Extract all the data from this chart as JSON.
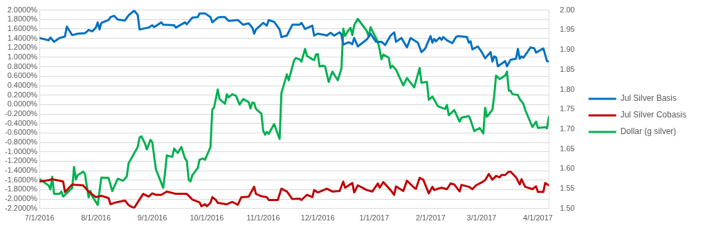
{
  "chart_data": {
    "type": "line",
    "legend": "right",
    "grid": "y",
    "xlim": [
      "2016-07-01",
      "2017-04-07"
    ],
    "xticks": [
      {
        "value": "2016-07-01",
        "label": "7/1/2016"
      },
      {
        "value": "2016-08-01",
        "label": "8/1/2016"
      },
      {
        "value": "2016-09-01",
        "label": "9/1/2016"
      },
      {
        "value": "2016-10-01",
        "label": "10/1/2016"
      },
      {
        "value": "2016-11-01",
        "label": "11/1/2016"
      },
      {
        "value": "2016-12-01",
        "label": "12/1/2016"
      },
      {
        "value": "2017-01-01",
        "label": "1/1/2017"
      },
      {
        "value": "2017-02-01",
        "label": "2/1/2017"
      },
      {
        "value": "2017-03-01",
        "label": "3/1/2017"
      },
      {
        "value": "2017-04-01",
        "label": "4/1/2017"
      }
    ],
    "ylim": [
      -2.2,
      2.0
    ],
    "yticks": [
      {
        "value": -2.2,
        "label": "-2.2000%"
      },
      {
        "value": -2.0,
        "label": "-2.0000%"
      },
      {
        "value": -1.8,
        "label": "-1.8000%"
      },
      {
        "value": -1.6,
        "label": "-1.6000%"
      },
      {
        "value": -1.4,
        "label": "-1.4000%"
      },
      {
        "value": -1.2,
        "label": "-1.2000%"
      },
      {
        "value": -1.0,
        "label": "-1.0000%"
      },
      {
        "value": -0.8,
        "label": "-0.8000%"
      },
      {
        "value": -0.6,
        "label": "-0.6000%"
      },
      {
        "value": -0.4,
        "label": "-0.4000%"
      },
      {
        "value": -0.2,
        "label": "-0.2000%"
      },
      {
        "value": 0,
        "label": "0.0000%"
      },
      {
        "value": 0.2,
        "label": "0.2000%"
      },
      {
        "value": 0.4,
        "label": "0.4000%"
      },
      {
        "value": 0.6,
        "label": "0.6000%"
      },
      {
        "value": 0.8,
        "label": "0.8000%"
      },
      {
        "value": 1.0,
        "label": "1.0000%"
      },
      {
        "value": 1.2,
        "label": "1.2000%"
      },
      {
        "value": 1.4,
        "label": "1.4000%"
      },
      {
        "value": 1.6,
        "label": "1.6000%"
      },
      {
        "value": 1.8,
        "label": "1.8000%"
      },
      {
        "value": 2.0,
        "label": "2.0000%"
      }
    ],
    "y2lim": [
      1.5,
      2.0
    ],
    "y2ticks": [
      {
        "value": 1.5,
        "label": "1.50"
      },
      {
        "value": 1.55,
        "label": "1.55"
      },
      {
        "value": 1.6,
        "label": "1.60"
      },
      {
        "value": 1.65,
        "label": "1.65"
      },
      {
        "value": 1.7,
        "label": "1.70"
      },
      {
        "value": 1.75,
        "label": "1.75"
      },
      {
        "value": 1.8,
        "label": "1.80"
      },
      {
        "value": 1.85,
        "label": "1.85"
      },
      {
        "value": 1.9,
        "label": "1.90"
      },
      {
        "value": 1.95,
        "label": "1.95"
      },
      {
        "value": 2.0,
        "label": "2.00"
      }
    ],
    "series": [
      {
        "name": "Jul Silver Basis",
        "color": "#0070c0",
        "x": [
          "2016-07-01",
          "2016-07-06",
          "2016-07-07",
          "2016-07-09",
          "2016-07-12",
          "2016-07-15",
          "2016-07-16",
          "2016-07-19",
          "2016-07-22",
          "2016-07-26",
          "2016-07-28",
          "2016-07-30",
          "2016-08-01",
          "2016-08-02",
          "2016-08-03",
          "2016-08-04",
          "2016-08-08",
          "2016-08-09",
          "2016-08-11",
          "2016-08-13",
          "2016-08-17",
          "2016-08-19",
          "2016-08-22",
          "2016-08-24",
          "2016-08-25",
          "2016-08-30",
          "2016-09-01",
          "2016-09-02",
          "2016-09-06",
          "2016-09-07",
          "2016-09-13",
          "2016-09-14",
          "2016-09-19",
          "2016-09-20",
          "2016-09-23",
          "2016-09-26",
          "2016-09-27",
          "2016-09-30",
          "2016-10-03",
          "2016-10-04",
          "2016-10-07",
          "2016-10-08",
          "2016-10-11",
          "2016-10-13",
          "2016-10-18",
          "2016-10-21",
          "2016-10-24",
          "2016-10-26",
          "2016-10-27",
          "2016-10-28",
          "2016-11-01",
          "2016-11-03",
          "2016-11-04",
          "2016-11-07",
          "2016-11-10",
          "2016-11-11",
          "2016-11-14",
          "2016-11-17",
          "2016-11-21",
          "2016-11-22",
          "2016-11-24",
          "2016-11-28",
          "2016-11-29",
          "2016-12-01",
          "2016-12-04",
          "2016-12-06",
          "2016-12-08",
          "2016-12-10",
          "2016-12-13",
          "2016-12-14",
          "2016-12-15",
          "2016-12-18",
          "2016-12-20",
          "2016-12-21",
          "2016-12-23",
          "2016-12-28",
          "2016-12-30",
          "2017-01-02",
          "2017-01-05",
          "2017-01-07",
          "2017-01-10",
          "2017-01-12",
          "2017-01-13",
          "2017-01-16",
          "2017-01-19",
          "2017-01-21",
          "2017-01-25",
          "2017-01-27",
          "2017-01-29",
          "2017-02-01",
          "2017-02-02",
          "2017-02-03",
          "2017-02-04",
          "2017-02-06",
          "2017-02-07",
          "2017-02-08",
          "2017-02-10",
          "2017-02-13",
          "2017-02-15",
          "2017-02-16",
          "2017-02-21",
          "2017-02-22",
          "2017-02-23",
          "2017-02-24",
          "2017-02-27",
          "2017-03-01",
          "2017-03-03",
          "2017-03-06",
          "2017-03-07",
          "2017-03-08",
          "2017-03-09",
          "2017-03-10",
          "2017-03-14",
          "2017-03-15",
          "2017-03-17",
          "2017-03-20",
          "2017-03-21",
          "2017-03-22",
          "2017-03-23",
          "2017-03-24",
          "2017-03-28",
          "2017-03-30",
          "2017-03-31",
          "2017-04-04",
          "2017-04-06",
          "2017-04-07"
        ],
        "values": [
          1.41,
          1.36,
          1.42,
          1.33,
          1.41,
          1.44,
          1.65,
          1.47,
          1.5,
          1.51,
          1.58,
          1.55,
          1.63,
          1.74,
          1.59,
          1.73,
          1.79,
          1.85,
          1.88,
          1.8,
          1.78,
          1.89,
          1.99,
          1.9,
          1.59,
          1.63,
          1.68,
          1.64,
          1.74,
          1.69,
          1.68,
          1.63,
          1.74,
          1.7,
          1.84,
          1.85,
          1.93,
          1.93,
          1.85,
          1.74,
          1.84,
          1.85,
          1.85,
          1.77,
          1.79,
          1.69,
          1.72,
          1.63,
          1.5,
          1.59,
          1.73,
          1.67,
          1.79,
          1.75,
          1.59,
          1.43,
          1.46,
          1.69,
          1.69,
          1.73,
          1.6,
          1.67,
          1.46,
          1.5,
          1.48,
          1.46,
          1.52,
          1.46,
          1.53,
          1.48,
          1.27,
          1.32,
          1.28,
          1.41,
          1.23,
          1.38,
          1.5,
          1.33,
          1.33,
          1.26,
          1.46,
          1.53,
          1.33,
          1.41,
          1.21,
          1.41,
          1.31,
          1.11,
          1.18,
          1.45,
          1.31,
          1.39,
          1.34,
          1.42,
          1.37,
          1.43,
          1.36,
          1.3,
          1.43,
          1.45,
          1.43,
          1.31,
          1.34,
          1.17,
          1.23,
          1.12,
          0.98,
          1.11,
          0.91,
          1.02,
          1.0,
          0.81,
          0.92,
          0.81,
          0.95,
          0.97,
          1.18,
          0.97,
          1.02,
          0.99,
          1.21,
          1.19,
          1.1,
          1.19,
          0.92,
          0.91
        ]
      },
      {
        "name": "Jul Silver Cobasis",
        "color": "#c00000",
        "x": [
          "2016-07-01",
          "2016-07-06",
          "2016-07-08",
          "2016-07-12",
          "2016-07-14",
          "2016-07-15",
          "2016-07-19",
          "2016-07-21",
          "2016-07-25",
          "2016-07-28",
          "2016-08-01",
          "2016-08-04",
          "2016-08-08",
          "2016-08-09",
          "2016-08-12",
          "2016-08-17",
          "2016-08-19",
          "2016-08-22",
          "2016-08-27",
          "2016-08-30",
          "2016-09-01",
          "2016-09-03",
          "2016-09-06",
          "2016-09-09",
          "2016-09-14",
          "2016-09-18",
          "2016-09-20",
          "2016-09-23",
          "2016-09-27",
          "2016-09-28",
          "2016-09-30",
          "2016-10-01",
          "2016-10-03",
          "2016-10-04",
          "2016-10-06",
          "2016-10-07",
          "2016-10-12",
          "2016-10-15",
          "2016-10-18",
          "2016-10-20",
          "2016-10-24",
          "2016-10-27",
          "2016-10-28",
          "2016-10-31",
          "2016-11-03",
          "2016-11-04",
          "2016-11-09",
          "2016-11-11",
          "2016-11-14",
          "2016-11-17",
          "2016-11-21",
          "2016-11-22",
          "2016-11-25",
          "2016-11-28",
          "2016-11-29",
          "2016-12-01",
          "2016-12-06",
          "2016-12-09",
          "2016-12-13",
          "2016-12-15",
          "2016-12-16",
          "2016-12-20",
          "2016-12-21",
          "2016-12-23",
          "2016-12-28",
          "2016-12-31",
          "2017-01-03",
          "2017-01-04",
          "2017-01-06",
          "2017-01-10",
          "2017-01-12",
          "2017-01-13",
          "2017-01-17",
          "2017-01-19",
          "2017-01-23",
          "2017-01-24",
          "2017-01-26",
          "2017-01-28",
          "2017-01-31",
          "2017-02-02",
          "2017-02-03",
          "2017-02-05",
          "2017-02-07",
          "2017-02-10",
          "2017-02-12",
          "2017-02-14",
          "2017-02-17",
          "2017-02-18",
          "2017-02-22",
          "2017-02-24",
          "2017-02-26",
          "2017-03-01",
          "2017-03-03",
          "2017-03-05",
          "2017-03-07",
          "2017-03-09",
          "2017-03-11",
          "2017-03-12",
          "2017-03-14",
          "2017-03-16",
          "2017-03-17",
          "2017-03-20",
          "2017-03-22",
          "2017-03-23",
          "2017-03-25",
          "2017-03-29",
          "2017-03-31",
          "2017-04-01",
          "2017-04-04",
          "2017-04-05",
          "2017-04-07"
        ],
        "values": [
          -1.63,
          -1.6,
          -1.58,
          -1.61,
          -1.63,
          -1.85,
          -1.69,
          -1.7,
          -1.71,
          -1.84,
          -1.96,
          -1.93,
          -1.98,
          -2.11,
          -2.07,
          -2.03,
          -2.13,
          -2.19,
          -1.89,
          -1.95,
          -1.88,
          -1.91,
          -1.91,
          -1.84,
          -1.89,
          -1.89,
          -1.89,
          -2.01,
          -2.07,
          -2.15,
          -2.11,
          -2.15,
          -2.08,
          -1.96,
          -2.02,
          -2.08,
          -2.11,
          -2.06,
          -2.12,
          -1.96,
          -1.95,
          -1.74,
          -1.89,
          -1.94,
          -1.96,
          -2.02,
          -2.02,
          -1.78,
          -1.84,
          -2.0,
          -1.99,
          -2.02,
          -1.91,
          -1.96,
          -1.81,
          -1.86,
          -1.78,
          -1.84,
          -1.83,
          -1.63,
          -1.76,
          -1.66,
          -1.86,
          -1.71,
          -1.81,
          -1.84,
          -1.67,
          -1.76,
          -1.64,
          -1.81,
          -1.91,
          -1.73,
          -1.83,
          -1.61,
          -1.76,
          -1.78,
          -1.55,
          -1.59,
          -1.88,
          -1.74,
          -1.81,
          -1.78,
          -1.76,
          -1.79,
          -1.67,
          -1.69,
          -1.84,
          -1.7,
          -1.74,
          -1.79,
          -1.71,
          -1.65,
          -1.6,
          -1.47,
          -1.59,
          -1.51,
          -1.54,
          -1.49,
          -1.49,
          -1.42,
          -1.42,
          -1.54,
          -1.69,
          -1.58,
          -1.74,
          -1.79,
          -1.73,
          -1.85,
          -1.85,
          -1.66,
          -1.71
        ]
      },
      {
        "name": "Dollar (g silver)",
        "color": "#00b050",
        "axis": "y2",
        "x": [
          "2016-07-01",
          "2016-07-06",
          "2016-07-07",
          "2016-07-08",
          "2016-07-09",
          "2016-07-12",
          "2016-07-13",
          "2016-07-14",
          "2016-07-19",
          "2016-07-20",
          "2016-07-21",
          "2016-07-22",
          "2016-07-25",
          "2016-07-26",
          "2016-07-28",
          "2016-07-29",
          "2016-07-30",
          "2016-08-02",
          "2016-08-04",
          "2016-08-08",
          "2016-08-10",
          "2016-08-13",
          "2016-08-16",
          "2016-08-18",
          "2016-08-19",
          "2016-08-24",
          "2016-08-25",
          "2016-08-26",
          "2016-08-28",
          "2016-08-29",
          "2016-08-31",
          "2016-09-01",
          "2016-09-03",
          "2016-09-07",
          "2016-09-08",
          "2016-09-09",
          "2016-09-12",
          "2016-09-13",
          "2016-09-15",
          "2016-09-17",
          "2016-09-19",
          "2016-09-20",
          "2016-09-21",
          "2016-09-22",
          "2016-09-23",
          "2016-09-26",
          "2016-09-27",
          "2016-09-29",
          "2016-09-30",
          "2016-10-03",
          "2016-10-04",
          "2016-10-05",
          "2016-10-07",
          "2016-10-08",
          "2016-10-11",
          "2016-10-12",
          "2016-10-13",
          "2016-10-15",
          "2016-10-17",
          "2016-10-19",
          "2016-10-21",
          "2016-10-24",
          "2016-10-25",
          "2016-10-26",
          "2016-10-27",
          "2016-10-28",
          "2016-10-31",
          "2016-11-01",
          "2016-11-02",
          "2016-11-03",
          "2016-11-04",
          "2016-11-07",
          "2016-11-10",
          "2016-11-11",
          "2016-11-14",
          "2016-11-15",
          "2016-11-18",
          "2016-11-19",
          "2016-11-21",
          "2016-11-22",
          "2016-11-24",
          "2016-11-25",
          "2016-11-28",
          "2016-11-29",
          "2016-11-30",
          "2016-12-01",
          "2016-12-02",
          "2016-12-04",
          "2016-12-05",
          "2016-12-07",
          "2016-12-09",
          "2016-12-12",
          "2016-12-14",
          "2016-12-15",
          "2016-12-16",
          "2016-12-18",
          "2016-12-19",
          "2016-12-20",
          "2016-12-21",
          "2016-12-23",
          "2016-12-28",
          "2016-12-29",
          "2016-12-30",
          "2017-01-03",
          "2017-01-04",
          "2017-01-05",
          "2017-01-06",
          "2017-01-09",
          "2017-01-10",
          "2017-01-11",
          "2017-01-13",
          "2017-01-17",
          "2017-01-19",
          "2017-01-23",
          "2017-01-26",
          "2017-01-27",
          "2017-01-30",
          "2017-01-31",
          "2017-02-02",
          "2017-02-05",
          "2017-02-07",
          "2017-02-09",
          "2017-02-10",
          "2017-02-11",
          "2017-02-14",
          "2017-02-17",
          "2017-02-18",
          "2017-02-22",
          "2017-02-23",
          "2017-02-25",
          "2017-02-28",
          "2017-03-02",
          "2017-03-03",
          "2017-03-04",
          "2017-03-07",
          "2017-03-08",
          "2017-03-09",
          "2017-03-11",
          "2017-03-14",
          "2017-03-15",
          "2017-03-16",
          "2017-03-17",
          "2017-03-18",
          "2017-03-21",
          "2017-03-22",
          "2017-03-24",
          "2017-03-25",
          "2017-03-29",
          "2017-03-31",
          "2017-04-01",
          "2017-04-05",
          "2017-04-06",
          "2017-04-07"
        ],
        "values": [
          1.574,
          1.558,
          1.548,
          1.58,
          1.537,
          1.537,
          1.543,
          1.53,
          1.552,
          1.605,
          1.573,
          1.584,
          1.593,
          1.587,
          1.528,
          1.544,
          1.531,
          1.509,
          1.578,
          1.577,
          1.544,
          1.575,
          1.57,
          1.581,
          1.614,
          1.655,
          1.679,
          1.682,
          1.664,
          1.649,
          1.673,
          1.667,
          1.599,
          1.552,
          1.59,
          1.634,
          1.63,
          1.651,
          1.64,
          1.655,
          1.626,
          1.62,
          1.573,
          1.568,
          1.584,
          1.602,
          1.623,
          1.626,
          1.623,
          1.655,
          1.749,
          1.755,
          1.8,
          1.776,
          1.764,
          1.788,
          1.78,
          1.788,
          1.784,
          1.762,
          1.776,
          1.768,
          1.752,
          1.767,
          1.766,
          1.751,
          1.739,
          1.696,
          1.686,
          1.693,
          1.688,
          1.713,
          1.675,
          1.791,
          1.838,
          1.823,
          1.874,
          1.879,
          1.876,
          1.87,
          1.902,
          1.885,
          1.876,
          1.874,
          1.888,
          1.889,
          1.858,
          1.86,
          1.858,
          1.819,
          1.845,
          1.823,
          1.853,
          1.953,
          1.935,
          1.95,
          1.955,
          1.937,
          1.962,
          1.978,
          1.947,
          1.932,
          1.957,
          1.92,
          1.9,
          1.876,
          1.888,
          1.88,
          1.854,
          1.86,
          1.85,
          1.81,
          1.829,
          1.805,
          1.854,
          1.817,
          1.819,
          1.774,
          1.782,
          1.758,
          1.754,
          1.751,
          1.761,
          1.735,
          1.748,
          1.719,
          1.729,
          1.733,
          1.723,
          1.695,
          1.703,
          1.689,
          1.754,
          1.731,
          1.749,
          1.785,
          1.835,
          1.826,
          1.835,
          1.845,
          1.797,
          1.797,
          1.788,
          1.786,
          1.776,
          1.764,
          1.749,
          1.705,
          1.719,
          1.703,
          1.705,
          1.702,
          1.731
        ]
      }
    ]
  }
}
